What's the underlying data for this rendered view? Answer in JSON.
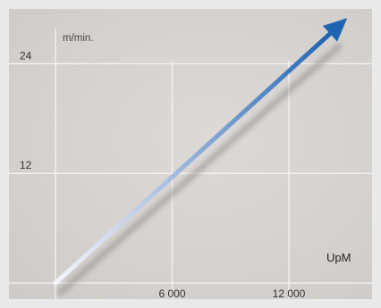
{
  "chart_data": {
    "type": "line",
    "ylabel": "m/min.",
    "xlabel": "UpM",
    "x_ticks": [
      {
        "value": 6000,
        "label": "6 000"
      },
      {
        "value": 12000,
        "label": "12 000"
      }
    ],
    "y_ticks": [
      {
        "value": 12,
        "label": "12"
      },
      {
        "value": 24,
        "label": "24"
      }
    ],
    "xlim": [
      0,
      16000
    ],
    "ylim": [
      0,
      30
    ],
    "grid": true,
    "series": [
      {
        "x": [
          0,
          15000
        ],
        "y": [
          0,
          29
        ],
        "color": "#1f63b3",
        "arrow": true
      }
    ],
    "colors": {
      "line_start": "#f2f4fa",
      "line_end": "#1f63b3",
      "grid": "#f4f4f4",
      "background": "#d8d5d2"
    }
  }
}
